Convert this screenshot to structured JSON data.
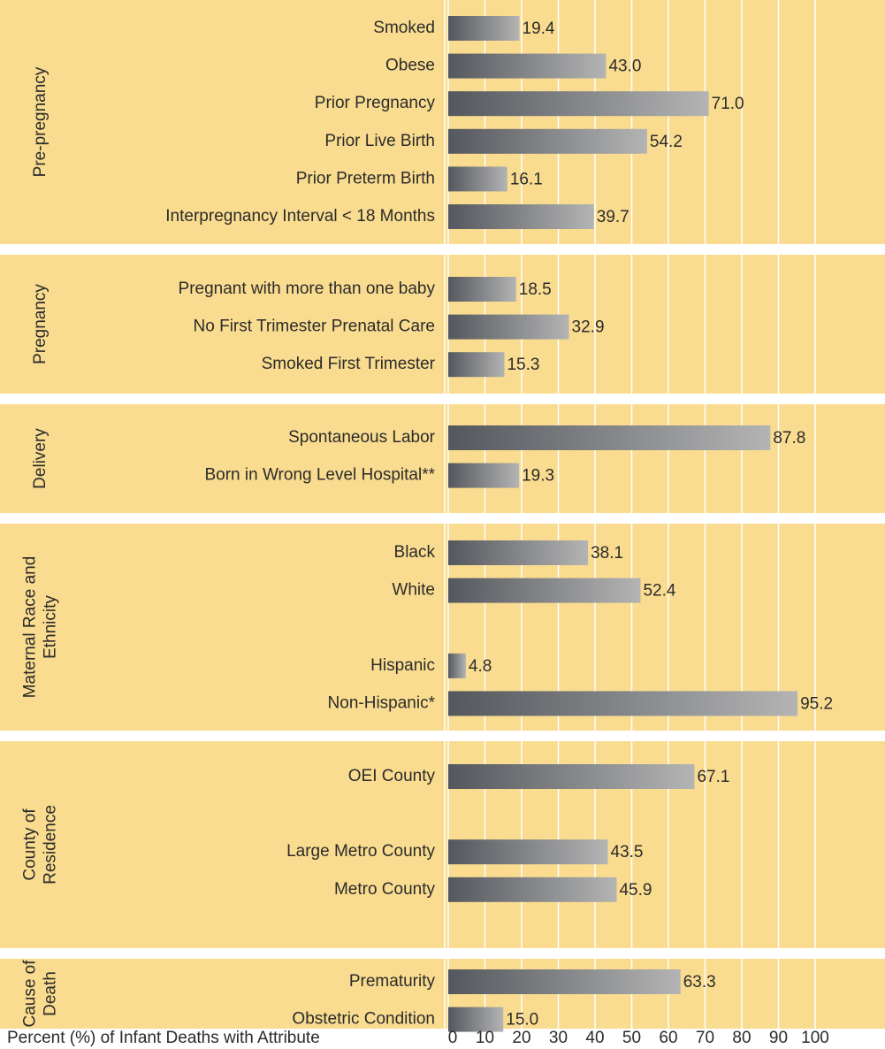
{
  "chart_data": {
    "type": "bar",
    "orientation": "horizontal",
    "x_label": "Percent (%) of Infant Deaths with Attribute",
    "xlim": [
      0,
      100
    ],
    "xticks": [
      0,
      10,
      20,
      30,
      40,
      50,
      60,
      70,
      80,
      90,
      100
    ],
    "grid": true,
    "panel_color": "#f9dc8f",
    "bar_color_start": "#54575d",
    "bar_color_end": "#b4b4b4",
    "groups": [
      {
        "label_lines": [
          "Pre-pregnancy"
        ],
        "categories": [
          "Smoked",
          "Obese",
          "Prior Pregnancy",
          "Prior Live Birth",
          "Prior Preterm Birth",
          "Interpregnancy Interval < 18 Months"
        ],
        "values": [
          19.4,
          43.0,
          71.0,
          54.2,
          16.1,
          39.7
        ],
        "value_labels": [
          "19.4",
          "43.0",
          "71.0",
          "54.2",
          "16.1",
          "39.7"
        ]
      },
      {
        "label_lines": [
          "Pregnancy"
        ],
        "categories": [
          "Pregnant with more than one baby",
          "No First Trimester Prenatal Care",
          "Smoked First Trimester"
        ],
        "values": [
          18.5,
          32.9,
          15.3
        ],
        "value_labels": [
          "18.5",
          "32.9",
          "15.3"
        ]
      },
      {
        "label_lines": [
          "Delivery"
        ],
        "categories": [
          "Spontaneous Labor",
          "Born in Wrong Level Hospital**"
        ],
        "values": [
          87.8,
          19.3
        ],
        "value_labels": [
          "87.8",
          "19.3"
        ]
      },
      {
        "label_lines": [
          "Maternal Race and",
          "Ethnicity"
        ],
        "categories": [
          "Black",
          "White",
          null,
          "Hispanic",
          "Non-Hispanic*"
        ],
        "values": [
          38.1,
          52.4,
          null,
          4.8,
          95.2
        ],
        "value_labels": [
          "38.1",
          "52.4",
          null,
          "4.8",
          "95.2"
        ]
      },
      {
        "label_lines": [
          "County of",
          "Residence"
        ],
        "categories": [
          "OEI County",
          null,
          "Large Metro County",
          "Metro County"
        ],
        "values": [
          67.1,
          null,
          43.5,
          45.9
        ],
        "value_labels": [
          "67.1",
          null,
          "43.5",
          "45.9"
        ]
      },
      {
        "label_lines": [
          "Cause of",
          "Death"
        ],
        "categories": [
          "Prematurity",
          "Obstetric Condition"
        ],
        "values": [
          63.3,
          15.0
        ],
        "value_labels": [
          "63.3",
          "15.0"
        ]
      }
    ]
  }
}
